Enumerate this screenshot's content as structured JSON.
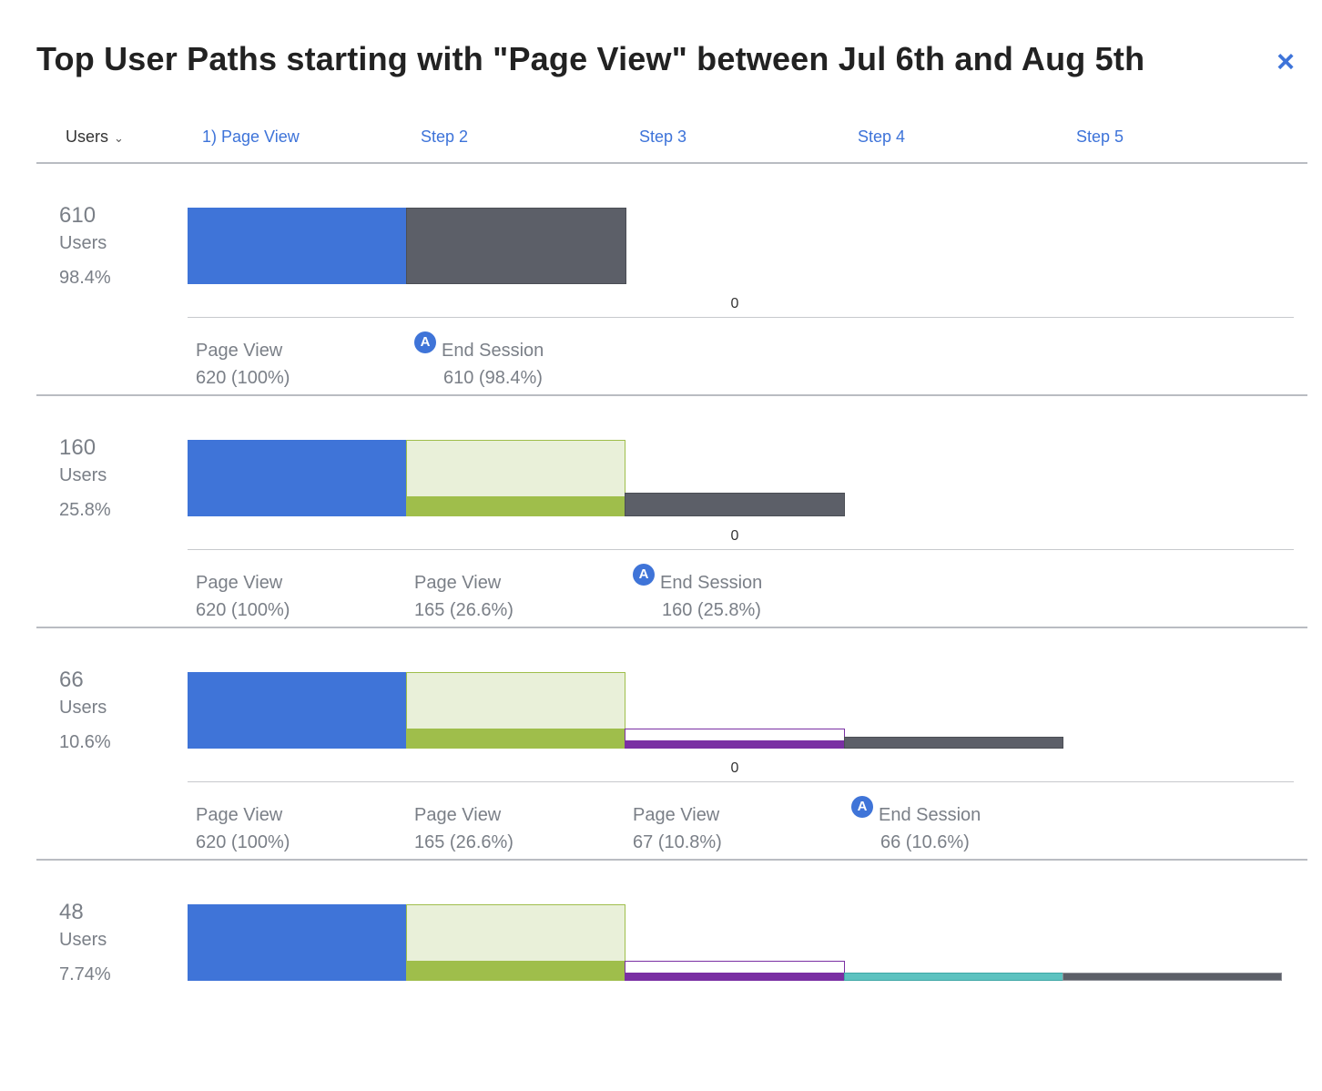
{
  "title": "Top User Paths starting with \"Page View\" between Jul 6th and Aug 5th",
  "close_glyph": "×",
  "header": {
    "metric_label": "Users",
    "metric_chevron": "⌄",
    "steps": [
      "1) Page View",
      "Step 2",
      "Step 3",
      "Step 4",
      "Step 5"
    ]
  },
  "colors": {
    "accent": "#3d73d9",
    "first_step": "#3f74d8",
    "end_session": "#5c5f68",
    "step_green": "#9fbe4b",
    "step_purple": "#7a2fa3",
    "step_teal": "#5cc2c0"
  },
  "axis_zero_label": "0",
  "end_icon_glyph": "A",
  "paths": [
    {
      "users": "610",
      "users_label": "Users",
      "percent": "98.4%",
      "steps": [
        {
          "name": "Page View",
          "value": "620 (100%)"
        },
        {
          "name": "End Session",
          "value": "610 (98.4%)",
          "end": true
        }
      ]
    },
    {
      "users": "160",
      "users_label": "Users",
      "percent": "25.8%",
      "steps": [
        {
          "name": "Page View",
          "value": "620 (100%)"
        },
        {
          "name": "Page View",
          "value": "165 (26.6%)"
        },
        {
          "name": "End Session",
          "value": "160 (25.8%)",
          "end": true
        }
      ]
    },
    {
      "users": "66",
      "users_label": "Users",
      "percent": "10.6%",
      "steps": [
        {
          "name": "Page View",
          "value": "620 (100%)"
        },
        {
          "name": "Page View",
          "value": "165 (26.6%)"
        },
        {
          "name": "Page View",
          "value": "67 (10.8%)"
        },
        {
          "name": "End Session",
          "value": "66 (10.6%)",
          "end": true
        }
      ]
    },
    {
      "users": "48",
      "users_label": "Users",
      "percent": "7.74%",
      "steps": []
    }
  ]
}
